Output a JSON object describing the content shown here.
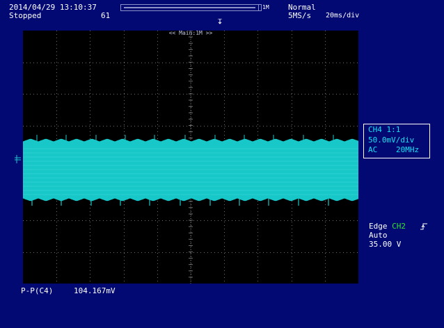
{
  "header": {
    "datetime": "2014/04/29 13:10:37",
    "status": "Stopped",
    "acq_count": "61",
    "record_length": "1M",
    "trigger_mode": "Normal",
    "sample_rate": "5MS/s",
    "time_div": "20ms/div"
  },
  "plot": {
    "zoom_label": "<< Main:1M >>",
    "background_color": "#000000",
    "grid_color": "#6f6f6f",
    "trace_color": "#18c8c8",
    "h_divisions": 10,
    "v_divisions": 8
  },
  "channel": {
    "name": "CH4",
    "probe": "1:1",
    "vdiv": "50.0mV/div",
    "coupling": "AC",
    "bandwidth": "20MHz",
    "color": "#18e0ee"
  },
  "trigger": {
    "type": "Edge",
    "source": "CH2",
    "source_color": "#31e531",
    "slope_icon": "rising-edge-icon",
    "mode": "Auto",
    "level": "35.00 V"
  },
  "measurement": {
    "label": "P-P(C4)",
    "value": "104.167mV"
  },
  "colors": {
    "screen_background": "#020973",
    "text": "#ffffff"
  }
}
